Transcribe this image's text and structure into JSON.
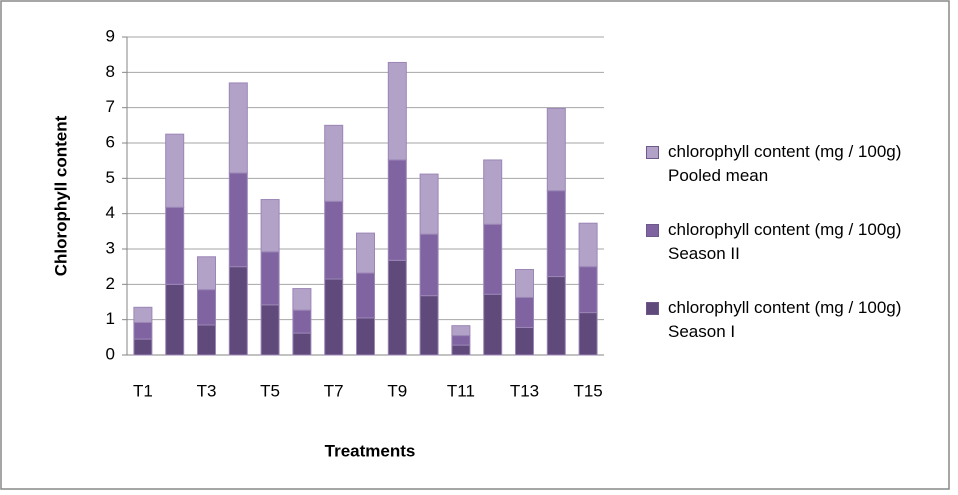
{
  "chart_data": {
    "type": "stacked_bar",
    "x_label": "Treatments",
    "y_label": "Chlorophyll content",
    "categories": [
      "T1",
      null,
      "T3",
      null,
      "T5",
      null,
      "T7",
      null,
      "T9",
      null,
      "T11",
      null,
      "T13",
      null,
      "T15"
    ],
    "series": [
      {
        "name": "chlorophyll content (mg / 100g) Season I",
        "color": "#604a7b",
        "values": [
          0.45,
          2.0,
          0.85,
          2.5,
          1.42,
          0.62,
          2.15,
          1.05,
          2.68,
          1.68,
          0.28,
          1.72,
          0.78,
          2.22,
          1.2
        ]
      },
      {
        "name": "chlorophyll content (mg / 100g) Season II",
        "color": "#8064a2",
        "values": [
          0.47,
          2.18,
          1.0,
          2.65,
          1.5,
          0.65,
          2.2,
          1.27,
          2.84,
          1.74,
          0.27,
          1.98,
          0.85,
          2.43,
          1.3
        ]
      },
      {
        "name": "chlorophyll content (mg / 100g) Pooled mean",
        "color": "#b3a2c7",
        "values": [
          0.43,
          2.07,
          0.93,
          2.55,
          1.48,
          0.61,
          2.15,
          1.13,
          2.76,
          1.7,
          0.28,
          1.82,
          0.79,
          2.33,
          1.23
        ]
      }
    ],
    "ylim": [
      0,
      9
    ],
    "yticks": [
      0,
      1,
      2,
      3,
      4,
      5,
      6,
      7,
      8,
      9
    ],
    "grid": true,
    "legend": "right"
  }
}
